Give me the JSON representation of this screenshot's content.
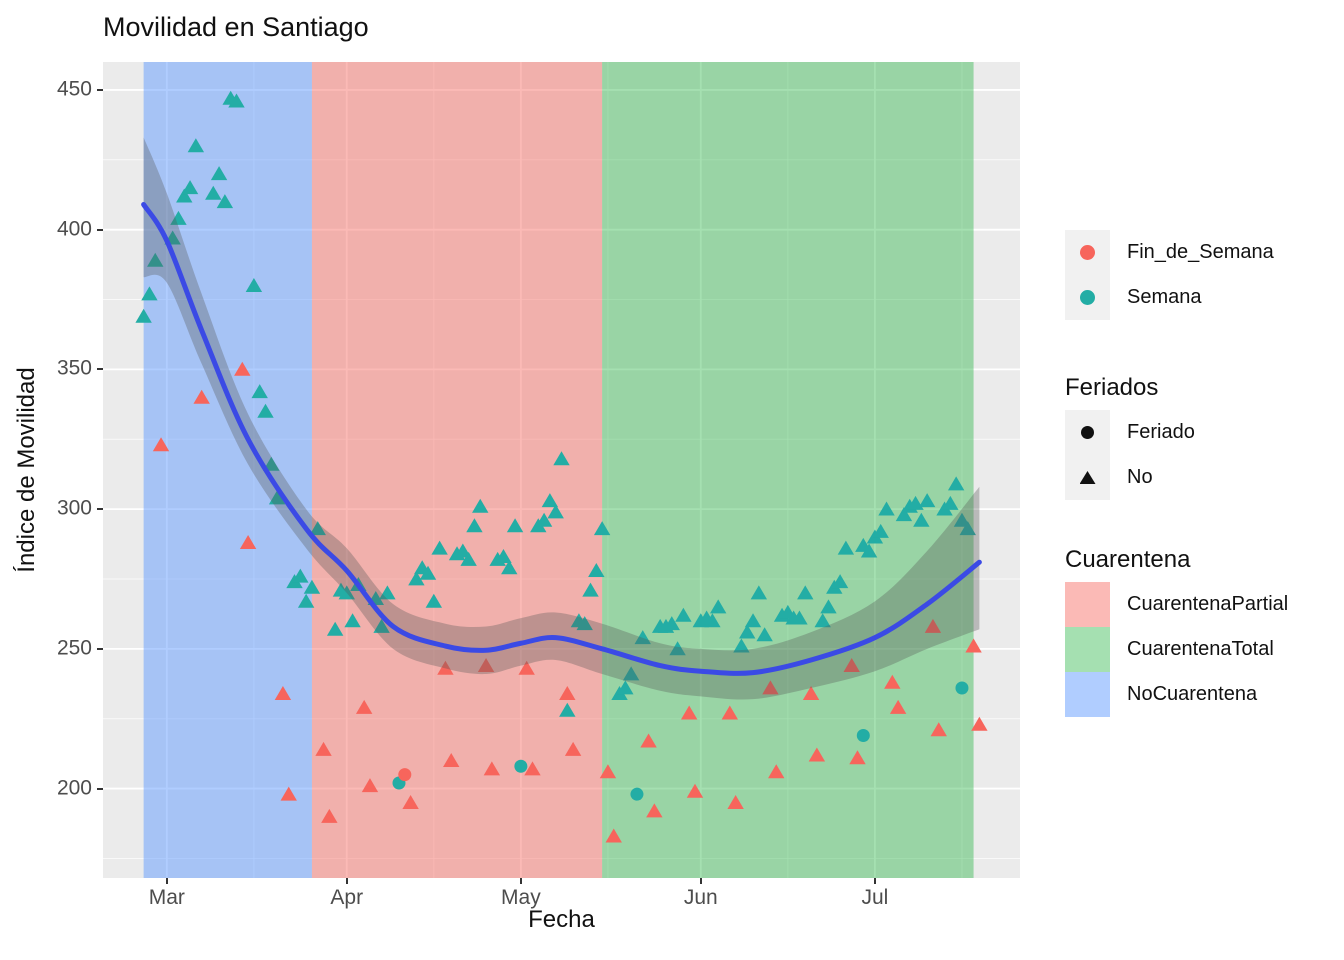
{
  "title": "Movilidad en Santiago",
  "legends": {
    "series": {
      "items": [
        {
          "label": "Fin_de_Semana",
          "color": "#F7655C"
        },
        {
          "label": "Semana",
          "color": "#23ADA5"
        }
      ]
    },
    "feriados": {
      "title": "Feriados",
      "glyph_color": "#111111",
      "items": [
        {
          "label": "Feriado",
          "shape": "circle"
        },
        {
          "label": "No",
          "shape": "triangle"
        }
      ]
    },
    "cuarentena": {
      "title": "Cuarentena",
      "items": [
        {
          "label": "CuarentenaPartial",
          "fill": "rgba(248,118,109,0.5)"
        },
        {
          "label": "CuarentenaTotal",
          "fill": "rgba(40,180,70,0.42)"
        },
        {
          "label": "NoCuarentena",
          "fill": "rgba(97,156,255,0.5)"
        }
      ]
    }
  },
  "colors": {
    "panel_bg": "#EBEBEB",
    "grid": "#FFFFFF",
    "semana": "#23ADA5",
    "fin_de_semana": "#F7655C",
    "smooth_line": "#3B4AE5",
    "ribbon": "rgba(85,85,85,0.33)",
    "tick_text": "#4d4d4d"
  },
  "chart_data": {
    "type": "scatter",
    "title": "Movilidad en Santiago",
    "xlabel": "Fecha",
    "ylabel": "Índice de Movilidad",
    "x_domain": [
      "2020-02-19",
      "2020-07-26"
    ],
    "y_domain": [
      168,
      460
    ],
    "x_ticks": [
      {
        "date": "2020-03-01",
        "label": "Mar"
      },
      {
        "date": "2020-04-01",
        "label": "Apr"
      },
      {
        "date": "2020-05-01",
        "label": "May"
      },
      {
        "date": "2020-06-01",
        "label": "Jun"
      },
      {
        "date": "2020-07-01",
        "label": "Jul"
      }
    ],
    "x_minor_ticks": [
      "2020-03-16",
      "2020-04-16",
      "2020-05-16",
      "2020-06-16",
      "2020-07-16"
    ],
    "y_ticks": [
      200,
      250,
      300,
      350,
      400,
      450
    ],
    "y_minor_ticks": [
      175,
      225,
      275,
      325,
      375,
      425
    ],
    "grid": true,
    "legend_position": "right",
    "bands": [
      {
        "label": "NoCuarentena",
        "from": "2020-02-26",
        "to": "2020-03-26",
        "fill": "rgba(97,156,255,0.5)"
      },
      {
        "label": "CuarentenaPartial",
        "from": "2020-03-26",
        "to": "2020-05-15",
        "fill": "rgba(248,118,109,0.5)"
      },
      {
        "label": "CuarentenaTotal",
        "from": "2020-05-15",
        "to": "2020-07-18",
        "fill": "rgba(40,180,70,0.42)"
      }
    ],
    "points_format": [
      "date",
      "value",
      "series:S=Semana,F=Fin_de_Semana",
      "feriado:1=circle,0=triangle"
    ],
    "points": [
      [
        "2020-02-26",
        369,
        "S",
        0
      ],
      [
        "2020-02-27",
        377,
        "S",
        0
      ],
      [
        "2020-02-28",
        389,
        "S",
        0
      ],
      [
        "2020-02-29",
        323,
        "F",
        0
      ],
      [
        "2020-03-02",
        397,
        "S",
        0
      ],
      [
        "2020-03-03",
        404,
        "S",
        0
      ],
      [
        "2020-03-04",
        412,
        "S",
        0
      ],
      [
        "2020-03-05",
        415,
        "S",
        0
      ],
      [
        "2020-03-06",
        430,
        "S",
        0
      ],
      [
        "2020-03-07",
        340,
        "F",
        0
      ],
      [
        "2020-03-09",
        413,
        "S",
        0
      ],
      [
        "2020-03-10",
        420,
        "S",
        0
      ],
      [
        "2020-03-11",
        410,
        "S",
        0
      ],
      [
        "2020-03-12",
        447,
        "S",
        0
      ],
      [
        "2020-03-13",
        446,
        "S",
        0
      ],
      [
        "2020-03-14",
        350,
        "F",
        0
      ],
      [
        "2020-03-15",
        288,
        "F",
        0
      ],
      [
        "2020-03-16",
        380,
        "S",
        0
      ],
      [
        "2020-03-17",
        342,
        "S",
        0
      ],
      [
        "2020-03-18",
        335,
        "S",
        0
      ],
      [
        "2020-03-19",
        316,
        "S",
        0
      ],
      [
        "2020-03-20",
        304,
        "S",
        0
      ],
      [
        "2020-03-21",
        234,
        "F",
        0
      ],
      [
        "2020-03-22",
        198,
        "F",
        0
      ],
      [
        "2020-03-23",
        274,
        "S",
        0
      ],
      [
        "2020-03-24",
        276,
        "S",
        0
      ],
      [
        "2020-03-25",
        267,
        "S",
        0
      ],
      [
        "2020-03-26",
        272,
        "S",
        0
      ],
      [
        "2020-03-27",
        293,
        "S",
        0
      ],
      [
        "2020-03-28",
        214,
        "F",
        0
      ],
      [
        "2020-03-29",
        190,
        "F",
        0
      ],
      [
        "2020-03-30",
        257,
        "S",
        0
      ],
      [
        "2020-03-31",
        271,
        "S",
        0
      ],
      [
        "2020-04-01",
        270,
        "S",
        0
      ],
      [
        "2020-04-02",
        260,
        "S",
        0
      ],
      [
        "2020-04-03",
        273,
        "S",
        0
      ],
      [
        "2020-04-04",
        229,
        "F",
        0
      ],
      [
        "2020-04-05",
        201,
        "F",
        0
      ],
      [
        "2020-04-06",
        268,
        "S",
        0
      ],
      [
        "2020-04-07",
        258,
        "S",
        0
      ],
      [
        "2020-04-08",
        270,
        "S",
        0
      ],
      [
        "2020-04-10",
        202,
        "S",
        1
      ],
      [
        "2020-04-11",
        205,
        "F",
        1
      ],
      [
        "2020-04-12",
        195,
        "F",
        0
      ],
      [
        "2020-04-13",
        275,
        "S",
        0
      ],
      [
        "2020-04-14",
        279,
        "S",
        0
      ],
      [
        "2020-04-15",
        277,
        "S",
        0
      ],
      [
        "2020-04-16",
        267,
        "S",
        0
      ],
      [
        "2020-04-17",
        286,
        "S",
        0
      ],
      [
        "2020-04-18",
        243,
        "F",
        0
      ],
      [
        "2020-04-19",
        210,
        "F",
        0
      ],
      [
        "2020-04-20",
        284,
        "S",
        0
      ],
      [
        "2020-04-21",
        285,
        "S",
        0
      ],
      [
        "2020-04-22",
        282,
        "S",
        0
      ],
      [
        "2020-04-23",
        294,
        "S",
        0
      ],
      [
        "2020-04-24",
        301,
        "S",
        0
      ],
      [
        "2020-04-25",
        244,
        "F",
        0
      ],
      [
        "2020-04-26",
        207,
        "F",
        0
      ],
      [
        "2020-04-27",
        282,
        "S",
        0
      ],
      [
        "2020-04-28",
        283,
        "S",
        0
      ],
      [
        "2020-04-29",
        279,
        "S",
        0
      ],
      [
        "2020-04-30",
        294,
        "S",
        0
      ],
      [
        "2020-05-01",
        208,
        "S",
        1
      ],
      [
        "2020-05-02",
        243,
        "F",
        0
      ],
      [
        "2020-05-03",
        207,
        "F",
        0
      ],
      [
        "2020-05-04",
        294,
        "S",
        0
      ],
      [
        "2020-05-05",
        296,
        "S",
        0
      ],
      [
        "2020-05-06",
        303,
        "S",
        0
      ],
      [
        "2020-05-07",
        299,
        "S",
        0
      ],
      [
        "2020-05-08",
        318,
        "S",
        0
      ],
      [
        "2020-05-09",
        228,
        "S",
        0
      ],
      [
        "2020-05-09",
        234,
        "F",
        0
      ],
      [
        "2020-05-10",
        214,
        "F",
        0
      ],
      [
        "2020-05-11",
        260,
        "S",
        0
      ],
      [
        "2020-05-12",
        259,
        "S",
        0
      ],
      [
        "2020-05-13",
        271,
        "S",
        0
      ],
      [
        "2020-05-14",
        278,
        "S",
        0
      ],
      [
        "2020-05-15",
        293,
        "S",
        0
      ],
      [
        "2020-05-16",
        206,
        "F",
        0
      ],
      [
        "2020-05-17",
        183,
        "F",
        0
      ],
      [
        "2020-05-18",
        234,
        "S",
        0
      ],
      [
        "2020-05-19",
        236,
        "S",
        0
      ],
      [
        "2020-05-20",
        241,
        "S",
        0
      ],
      [
        "2020-05-21",
        198,
        "S",
        1
      ],
      [
        "2020-05-22",
        254,
        "S",
        0
      ],
      [
        "2020-05-23",
        217,
        "F",
        0
      ],
      [
        "2020-05-24",
        192,
        "F",
        0
      ],
      [
        "2020-05-25",
        258,
        "S",
        0
      ],
      [
        "2020-05-26",
        258,
        "S",
        0
      ],
      [
        "2020-05-27",
        259,
        "S",
        0
      ],
      [
        "2020-05-28",
        250,
        "S",
        0
      ],
      [
        "2020-05-29",
        262,
        "S",
        0
      ],
      [
        "2020-05-30",
        227,
        "F",
        0
      ],
      [
        "2020-05-31",
        199,
        "F",
        0
      ],
      [
        "2020-06-01",
        260,
        "S",
        0
      ],
      [
        "2020-06-02",
        261,
        "S",
        0
      ],
      [
        "2020-06-03",
        260,
        "S",
        0
      ],
      [
        "2020-06-04",
        265,
        "S",
        0
      ],
      [
        "2020-06-06",
        227,
        "F",
        0
      ],
      [
        "2020-06-07",
        195,
        "F",
        0
      ],
      [
        "2020-06-08",
        251,
        "S",
        0
      ],
      [
        "2020-06-09",
        256,
        "S",
        0
      ],
      [
        "2020-06-10",
        260,
        "S",
        0
      ],
      [
        "2020-06-11",
        270,
        "S",
        0
      ],
      [
        "2020-06-12",
        255,
        "S",
        0
      ],
      [
        "2020-06-13",
        236,
        "F",
        0
      ],
      [
        "2020-06-14",
        206,
        "F",
        0
      ],
      [
        "2020-06-15",
        262,
        "S",
        0
      ],
      [
        "2020-06-16",
        263,
        "S",
        0
      ],
      [
        "2020-06-17",
        261,
        "S",
        0
      ],
      [
        "2020-06-18",
        261,
        "S",
        0
      ],
      [
        "2020-06-19",
        270,
        "S",
        0
      ],
      [
        "2020-06-20",
        234,
        "F",
        0
      ],
      [
        "2020-06-21",
        212,
        "F",
        0
      ],
      [
        "2020-06-22",
        260,
        "S",
        0
      ],
      [
        "2020-06-23",
        265,
        "S",
        0
      ],
      [
        "2020-06-24",
        272,
        "S",
        0
      ],
      [
        "2020-06-25",
        274,
        "S",
        0
      ],
      [
        "2020-06-26",
        286,
        "S",
        0
      ],
      [
        "2020-06-27",
        244,
        "F",
        0
      ],
      [
        "2020-06-28",
        211,
        "F",
        0
      ],
      [
        "2020-06-29",
        219,
        "S",
        1
      ],
      [
        "2020-06-29",
        287,
        "S",
        0
      ],
      [
        "2020-06-30",
        285,
        "S",
        0
      ],
      [
        "2020-07-01",
        290,
        "S",
        0
      ],
      [
        "2020-07-02",
        292,
        "S",
        0
      ],
      [
        "2020-07-03",
        300,
        "S",
        0
      ],
      [
        "2020-07-04",
        238,
        "F",
        0
      ],
      [
        "2020-07-05",
        229,
        "F",
        0
      ],
      [
        "2020-07-06",
        298,
        "S",
        0
      ],
      [
        "2020-07-07",
        301,
        "S",
        0
      ],
      [
        "2020-07-08",
        302,
        "S",
        0
      ],
      [
        "2020-07-09",
        296,
        "S",
        0
      ],
      [
        "2020-07-10",
        303,
        "S",
        0
      ],
      [
        "2020-07-11",
        258,
        "F",
        0
      ],
      [
        "2020-07-12",
        221,
        "F",
        0
      ],
      [
        "2020-07-13",
        300,
        "S",
        0
      ],
      [
        "2020-07-14",
        302,
        "S",
        0
      ],
      [
        "2020-07-15",
        309,
        "S",
        0
      ],
      [
        "2020-07-16",
        236,
        "S",
        1
      ],
      [
        "2020-07-16",
        296,
        "S",
        0
      ],
      [
        "2020-07-17",
        293,
        "S",
        0
      ],
      [
        "2020-07-18",
        251,
        "F",
        0
      ],
      [
        "2020-07-19",
        223,
        "F",
        0
      ]
    ],
    "smooth_line": [
      [
        "2020-02-26",
        409
      ],
      [
        "2020-03-01",
        396
      ],
      [
        "2020-03-07",
        364
      ],
      [
        "2020-03-15",
        325
      ],
      [
        "2020-03-25",
        293
      ],
      [
        "2020-04-01",
        278
      ],
      [
        "2020-04-09",
        258
      ],
      [
        "2020-04-18",
        251
      ],
      [
        "2020-04-25",
        249.5
      ],
      [
        "2020-05-01",
        252
      ],
      [
        "2020-05-07",
        254
      ],
      [
        "2020-05-15",
        250
      ],
      [
        "2020-05-25",
        244
      ],
      [
        "2020-06-01",
        242
      ],
      [
        "2020-06-10",
        241.5
      ],
      [
        "2020-06-20",
        246
      ],
      [
        "2020-07-01",
        254
      ],
      [
        "2020-07-10",
        266
      ],
      [
        "2020-07-19",
        281
      ]
    ],
    "ribbon": [
      [
        "2020-02-26",
        383,
        433
      ],
      [
        "2020-03-01",
        381,
        413
      ],
      [
        "2020-03-07",
        352,
        377
      ],
      [
        "2020-03-15",
        316,
        334
      ],
      [
        "2020-03-25",
        286,
        300
      ],
      [
        "2020-04-01",
        270,
        286
      ],
      [
        "2020-04-09",
        250,
        266
      ],
      [
        "2020-04-18",
        243,
        259
      ],
      [
        "2020-04-25",
        241,
        258
      ],
      [
        "2020-05-01",
        244,
        261
      ],
      [
        "2020-05-07",
        246,
        263
      ],
      [
        "2020-05-15",
        241,
        259
      ],
      [
        "2020-05-25",
        235,
        252
      ],
      [
        "2020-06-01",
        233,
        250
      ],
      [
        "2020-06-10",
        232,
        250
      ],
      [
        "2020-06-20",
        236,
        256
      ],
      [
        "2020-07-01",
        242,
        267
      ],
      [
        "2020-07-10",
        250,
        285
      ],
      [
        "2020-07-19",
        257,
        308
      ]
    ]
  }
}
